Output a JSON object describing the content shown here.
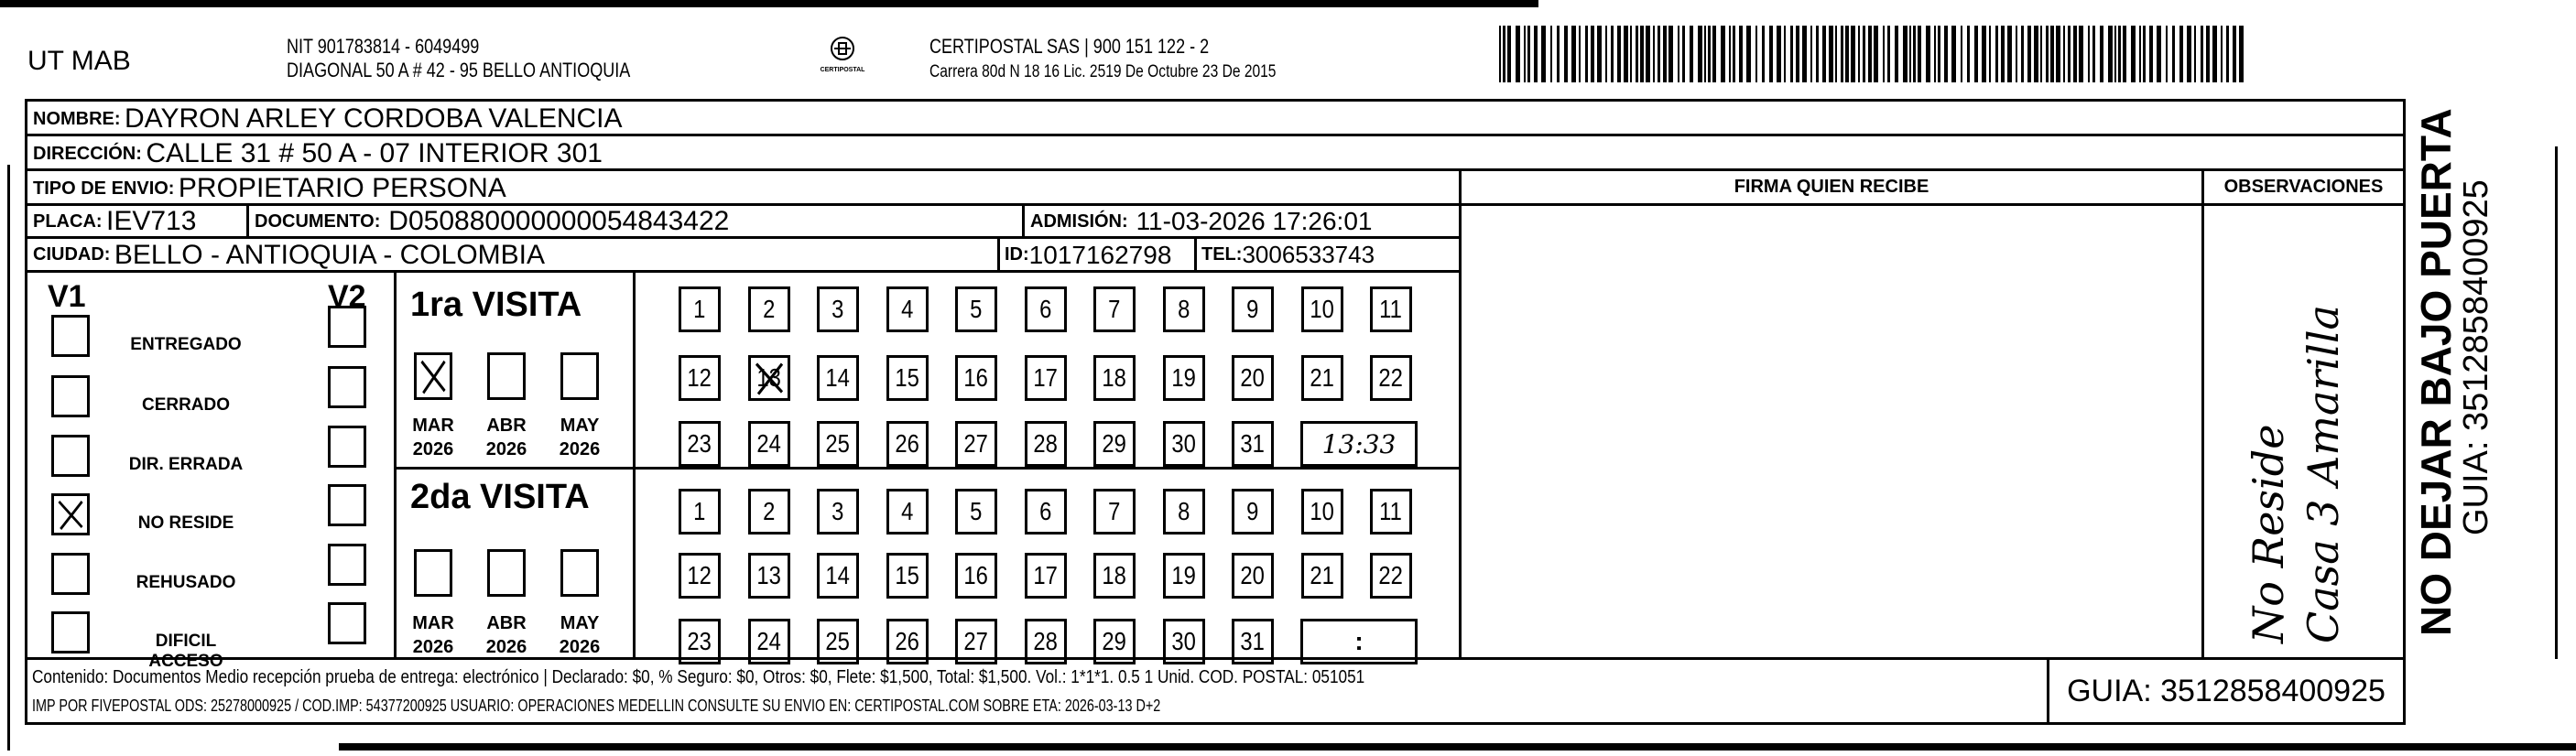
{
  "header": {
    "company": "UT MAB",
    "nit": "NIT 901783814 - 6049499",
    "address": "DIAGONAL 50 A # 42 - 95  BELLO  ANTIOQUIA",
    "logo_text": "CERTIPOSTAL",
    "carrier": "CERTIPOSTAL SAS | 900 151 122 - 2",
    "license": "Carrera 80d N 18 16  Lic. 2519 De Octubre 23 De 2015",
    "barcode_icon": "barcode-icon"
  },
  "recipient": {
    "nombre_label": "NOMBRE:",
    "nombre": "DAYRON ARLEY CORDOBA VALENCIA",
    "direccion_label": "DIRECCIÓN:",
    "direccion": "CALLE 31 # 50 A - 07 INTERIOR 301",
    "tipo_label": "TIPO DE ENVIO:",
    "tipo": "PROPIETARIO PERSONA",
    "placa_label": "PLACA:",
    "placa": "IEV713",
    "documento_label": "DOCUMENTO:",
    "documento": "D050880000000054843422",
    "admision_label": "ADMISIÓN:",
    "admision": "11-03-2026 17:26:01",
    "ciudad_label": "CIUDAD:",
    "ciudad": "BELLO - ANTIOQUIA - COLOMBIA",
    "id_label": "ID:",
    "id": "1017162798",
    "tel_label": "TEL:",
    "tel": "3006533743"
  },
  "columns": {
    "firma": "FIRMA QUIEN RECIBE",
    "observaciones": "OBSERVACIONES"
  },
  "status": {
    "v1": "V1",
    "v2": "V2",
    "items": [
      {
        "label": "ENTREGADO",
        "v1": false,
        "v2": false
      },
      {
        "label": "CERRADO",
        "v1": false,
        "v2": false
      },
      {
        "label": "DIR. ERRADA",
        "v1": false,
        "v2": false
      },
      {
        "label": "NO RESIDE",
        "v1": true,
        "v2": false
      },
      {
        "label": "REHUSADO",
        "v1": false,
        "v2": false
      },
      {
        "label": "DIFICIL ACCESO",
        "v1": false,
        "v2": false
      }
    ]
  },
  "visits": [
    {
      "title": "1ra VISITA",
      "months": [
        {
          "name": "MAR",
          "year": "2026",
          "checked": true
        },
        {
          "name": "ABR",
          "year": "2026",
          "checked": false
        },
        {
          "name": "MAY",
          "year": "2026",
          "checked": false
        }
      ],
      "checked_day": 13,
      "time": "13:33"
    },
    {
      "title": "2da VISITA",
      "months": [
        {
          "name": "MAR",
          "year": "2026",
          "checked": false
        },
        {
          "name": "ABR",
          "year": "2026",
          "checked": false
        },
        {
          "name": "MAY",
          "year": "2026",
          "checked": false
        }
      ],
      "checked_day": null,
      "time": ":"
    }
  ],
  "observaciones_handwritten": [
    "No Reside",
    "Casa 3 Amarilla"
  ],
  "footer": {
    "line1": "Contenido: Documentos Medio recepción prueba de entrega: electrónico | Declarado: $0, % Seguro: $0, Otros: $0, Flete: $1,500, Total: $1,500. Vol.: 1*1*1. 0.5  1 Unid. COD. POSTAL: 051051",
    "line2": "IMP POR FIVEPOSTAL ODS: 25278000925 / COD.IMP: 54377200925 USUARIO: OPERACIONES MEDELLIN CONSULTE SU ENVIO EN: CERTIPOSTAL.COM SOBRE ETA: 2026-03-13 D+2",
    "guia": "GUIA: 3512858400925"
  },
  "side": {
    "warning": "NO DEJAR BAJO PUERTA",
    "guia": "GUIA: 3512858400925"
  }
}
